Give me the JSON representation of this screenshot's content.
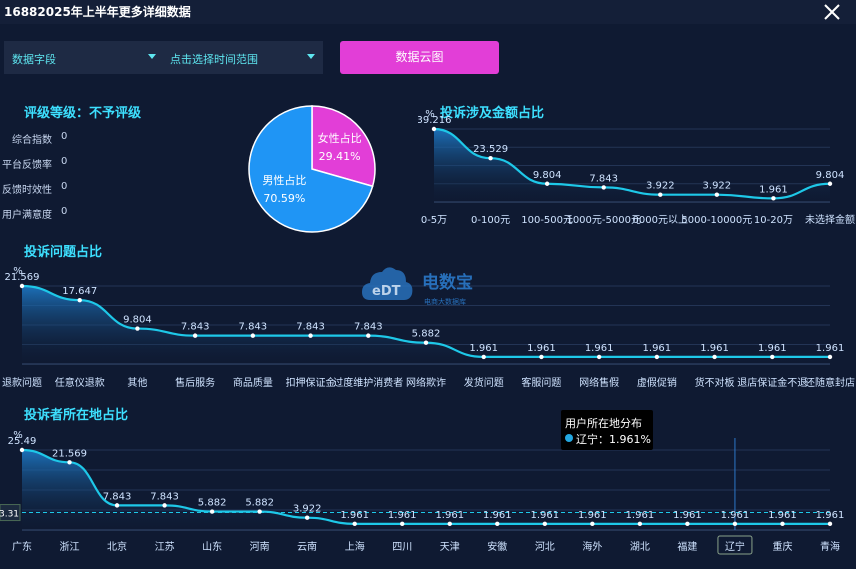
{
  "window": {
    "title": "16882025年上半年更多详细数据"
  },
  "controls": {
    "field_select": "数据字段",
    "time_select": "点击选择时间范围",
    "cloud_button": "数据云图"
  },
  "rating": {
    "title": "评级等级：不予评级",
    "items": [
      {
        "label": "综合指数",
        "value": "0"
      },
      {
        "label": "平台反馈率",
        "value": "0"
      },
      {
        "label": "反馈时效性",
        "value": "0"
      },
      {
        "label": "用户满意度",
        "value": "0"
      }
    ]
  },
  "watermark": {
    "brand": "电数宝",
    "sub": "电商大数据库",
    "logo": "eDT"
  },
  "tooltip": {
    "title": "用户所在地分布",
    "text": "辽宁：1.961%"
  },
  "colors": {
    "line": "#1ec8e8",
    "female": "#e23ed7",
    "male": "#1f95f5",
    "bg": "#0f1a32"
  },
  "chart_data": [
    {
      "type": "pie",
      "slices": [
        {
          "label": "女性占比",
          "value": 29.41,
          "display": "29.41%"
        },
        {
          "label": "男性占比",
          "value": 70.59,
          "display": "70.59%"
        }
      ]
    },
    {
      "type": "area",
      "title": "投诉涉及金额占比",
      "ylabel": "%",
      "categories": [
        "0-5万",
        "0-100元",
        "100-500元",
        "1000元-5000元",
        "0000元以上",
        "5000-10000元",
        "10-20万",
        "未选择金额"
      ],
      "values": [
        39.216,
        23.529,
        9.804,
        7.843,
        3.922,
        3.922,
        1.961,
        9.804
      ],
      "labels": [
        "39.216",
        "23.529",
        "9.804",
        "7.843",
        "3.922",
        "3.922",
        "1.961",
        "9.804"
      ]
    },
    {
      "type": "area",
      "title": "投诉问题占比",
      "ylabel": "%",
      "categories": [
        "退款问题",
        "任意仪退款",
        "其他",
        "售后服务",
        "商品质量",
        "扣押保证金",
        "过度维护消费者",
        "网络欺诈",
        "发货问题",
        "客服问题",
        "网络售假",
        "虚假促销",
        "货不对板",
        "退店保证金不退",
        "还随意封店"
      ],
      "values": [
        21.569,
        17.647,
        9.804,
        7.843,
        7.843,
        7.843,
        7.843,
        5.882,
        1.961,
        1.961,
        1.961,
        1.961,
        1.961,
        1.961,
        1.961
      ],
      "labels": [
        "21.569",
        "17.647",
        "9.804",
        "7.843",
        "7.843",
        "7.843",
        "7.843",
        "5.882",
        "1.961",
        "1.961",
        "1.961",
        "1.961",
        "1.961",
        "1.961",
        "1.961"
      ]
    },
    {
      "type": "area",
      "title": "投诉者所在地占比",
      "ylabel": "%",
      "categories": [
        "广东",
        "浙江",
        "北京",
        "江苏",
        "山东",
        "河南",
        "云南",
        "上海",
        "四川",
        "天津",
        "安徽",
        "河北",
        "海外",
        "湖北",
        "福建",
        "辽宁",
        "重庆",
        "青海"
      ],
      "values": [
        25.49,
        21.569,
        7.843,
        7.843,
        5.882,
        5.882,
        3.922,
        1.961,
        1.961,
        1.961,
        1.961,
        1.961,
        1.961,
        1.961,
        1.961,
        1.961,
        1.961,
        1.961
      ],
      "labels": [
        "25.49",
        "21.569",
        "7.843",
        "7.843",
        "5.882",
        "5.882",
        "3.922",
        "1.961",
        "1.961",
        "1.961",
        "1.961",
        "1.961",
        "1.961",
        "1.961",
        "1.961",
        "1.961",
        "1.961",
        "1.961"
      ],
      "reference_line": {
        "value": 5.56,
        "label": "3.31"
      },
      "highlight": "辽宁"
    }
  ]
}
